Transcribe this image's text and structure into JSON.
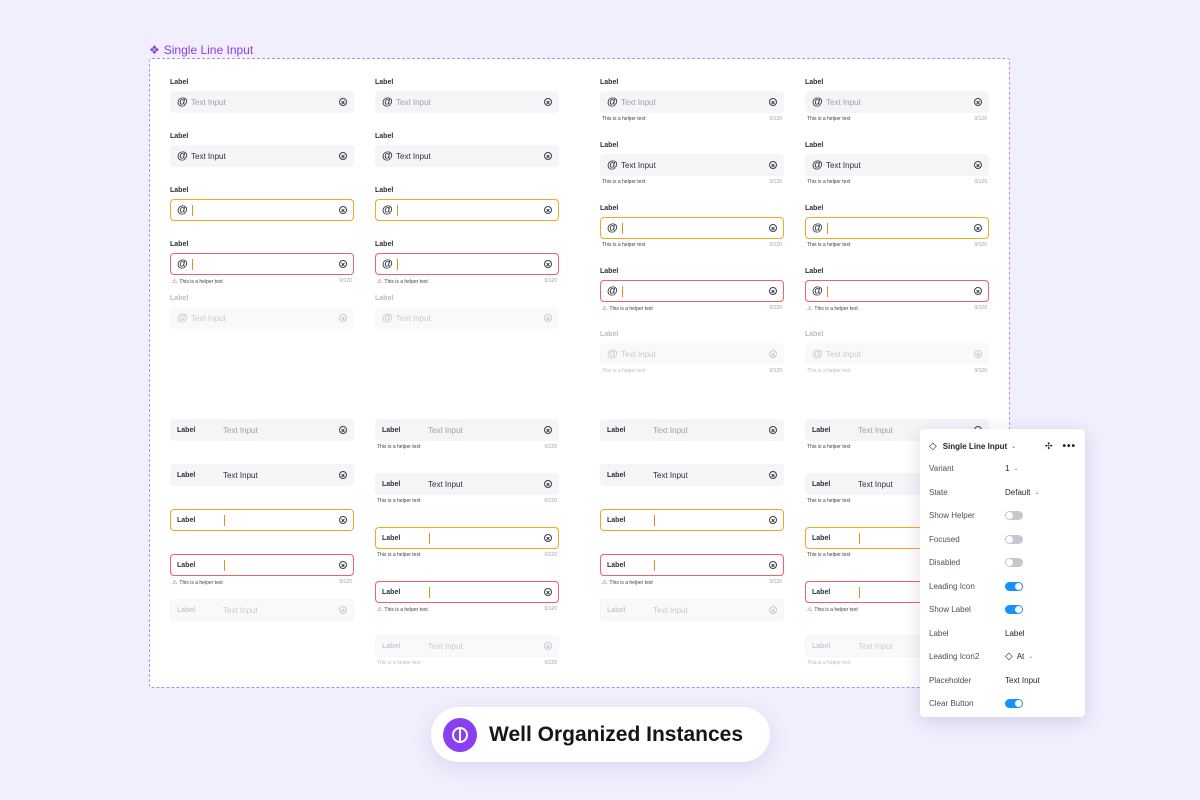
{
  "frame": {
    "title": "Single Line Input"
  },
  "field": {
    "label": "Label",
    "placeholder": "Text Input",
    "value": "Text Input",
    "helper": "This is a helper text",
    "counter": "0/120"
  },
  "panel": {
    "title": "Single Line Input",
    "rows": [
      {
        "key": "Variant",
        "value": "1"
      },
      {
        "key": "State",
        "value": "Default"
      },
      {
        "key": "Show Helper",
        "toggle": false
      },
      {
        "key": "Focused",
        "toggle": false
      },
      {
        "key": "Disabled",
        "toggle": false
      },
      {
        "key": "Leading Icon",
        "toggle": true
      },
      {
        "key": "Show Label",
        "toggle": true
      },
      {
        "key": "Label",
        "value": "Label"
      },
      {
        "key": "Leading Icon2",
        "value": "At"
      },
      {
        "key": "Placeholder",
        "value": "Text Input"
      },
      {
        "key": "Clear Button",
        "toggle": true
      }
    ]
  },
  "badge": {
    "text": "Well Organized Instances"
  },
  "colors": {
    "accent": "#8a3ff0",
    "focus": "#f5a623",
    "error": "#f0606a",
    "toggle_on": "#1890ff"
  }
}
